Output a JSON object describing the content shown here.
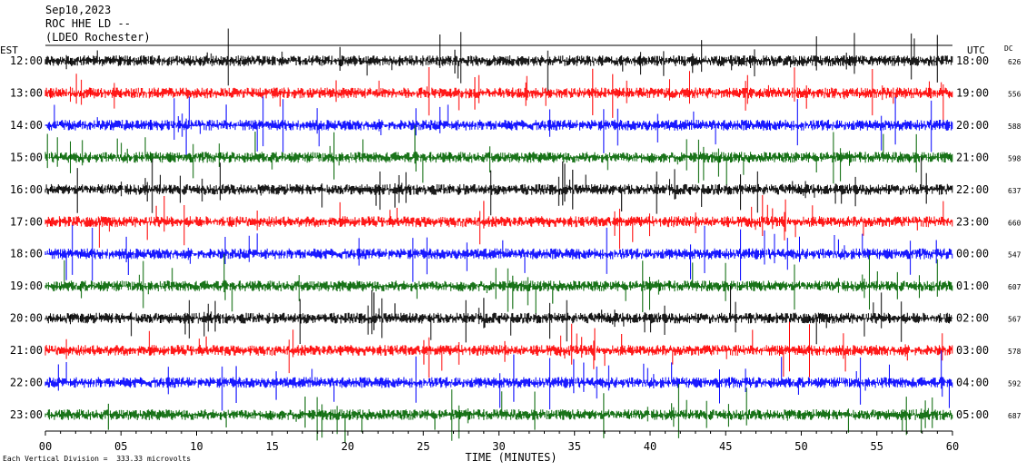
{
  "header": {
    "date": "Sep10,2023",
    "station": "ROC HHE LD --",
    "network": "(LDEO Rochester)"
  },
  "labels": {
    "left_tz": "EST",
    "right_tz": "UTC",
    "dc": "DC",
    "xlabel": "TIME (MINUTES)",
    "footer": "Each Vertical Division =  333.33 microvolts"
  },
  "colors": {
    "cycle": [
      "#000000",
      "#ff0000",
      "#0000ff",
      "#006400"
    ],
    "axis": "#000000",
    "background": "#ffffff"
  },
  "chart_data": {
    "type": "line",
    "title": "Sep10,2023 ROC HHE LD -- (LDEO Rochester)",
    "xlabel": "TIME (MINUTES)",
    "xlim": [
      0,
      60
    ],
    "xticks": [
      "00",
      "05",
      "10",
      "15",
      "20",
      "25",
      "30",
      "35",
      "40",
      "45",
      "50",
      "55",
      "60"
    ],
    "rows": [
      {
        "est": "12:00",
        "utc": "18:00",
        "dc": "626",
        "color": "#000000"
      },
      {
        "est": "13:00",
        "utc": "19:00",
        "dc": "556",
        "color": "#ff0000"
      },
      {
        "est": "14:00",
        "utc": "20:00",
        "dc": "588",
        "color": "#0000ff"
      },
      {
        "est": "15:00",
        "utc": "21:00",
        "dc": "598",
        "color": "#006400"
      },
      {
        "est": "16:00",
        "utc": "22:00",
        "dc": "637",
        "color": "#000000"
      },
      {
        "est": "17:00",
        "utc": "23:00",
        "dc": "660",
        "color": "#ff0000"
      },
      {
        "est": "18:00",
        "utc": "00:00",
        "dc": "547",
        "color": "#0000ff"
      },
      {
        "est": "19:00",
        "utc": "01:00",
        "dc": "607",
        "color": "#006400"
      },
      {
        "est": "20:00",
        "utc": "02:00",
        "dc": "567",
        "color": "#000000"
      },
      {
        "est": "21:00",
        "utc": "03:00",
        "dc": "578",
        "color": "#ff0000"
      },
      {
        "est": "22:00",
        "utc": "04:00",
        "dc": "592",
        "color": "#0000ff"
      },
      {
        "est": "23:00",
        "utc": "05:00",
        "dc": "687",
        "color": "#006400"
      }
    ],
    "scale_microvolts_per_division": 333.33
  }
}
